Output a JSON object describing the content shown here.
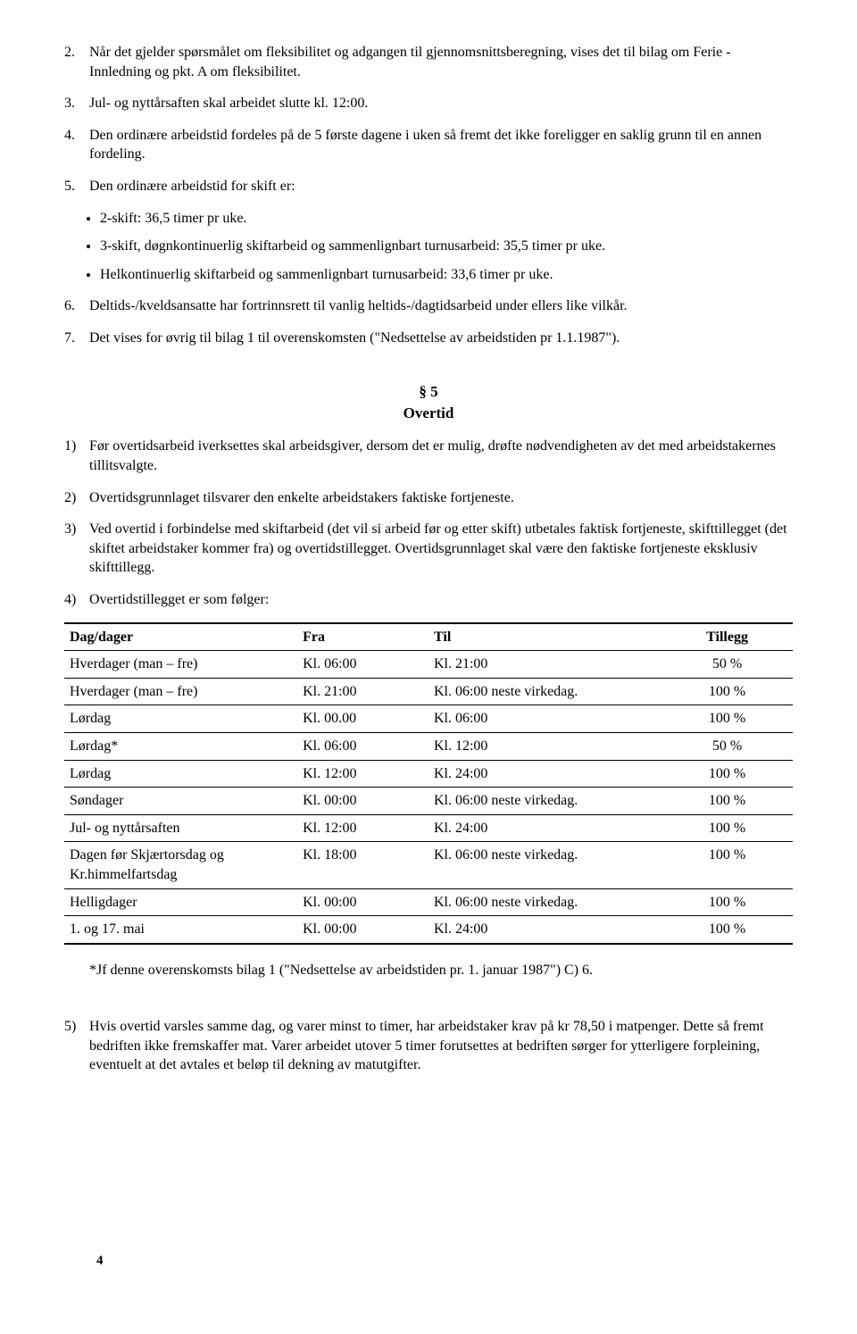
{
  "upper_list": [
    {
      "n": "2.",
      "text": "Når det gjelder spørsmålet om fleksibilitet og adgangen til gjennomsnittsberegning, vises det til bilag om Ferie - Innledning og pkt. A om fleksibilitet."
    },
    {
      "n": "3.",
      "text": "Jul- og nyttårsaften skal arbeidet slutte kl. 12:00."
    },
    {
      "n": "4.",
      "text": "Den ordinære arbeidstid fordeles på de 5 første dagene i uken så fremt det ikke foreligger en saklig grunn til en annen fordeling."
    },
    {
      "n": "5.",
      "text": "Den ordinære arbeidstid for skift er:"
    }
  ],
  "bullets": [
    "2-skift: 36,5 timer pr uke.",
    "3-skift, døgnkontinuerlig skiftarbeid og sammenlignbart turnusarbeid: 35,5 timer pr uke.",
    "Helkontinuerlig skiftarbeid og sammenlignbart turnusarbeid: 33,6 timer pr uke."
  ],
  "upper_list2": [
    {
      "n": "6.",
      "text": "Deltids-/kveldsansatte har fortrinnsrett til vanlig heltids-/dagtidsarbeid under ellers like vilkår."
    },
    {
      "n": "7.",
      "text": "Det vises for øvrig til bilag 1 til overenskomsten (\"Nedsettelse av arbeidstiden pr 1.1.1987\")."
    }
  ],
  "section": {
    "num": "§ 5",
    "title": "Overtid"
  },
  "lower_list": [
    {
      "n": "1)",
      "text": "Før overtidsarbeid iverksettes skal arbeidsgiver, dersom det er mulig, drøfte nødvendigheten av det med arbeidstakernes tillitsvalgte."
    },
    {
      "n": "2)",
      "text": "Overtidsgrunnlaget tilsvarer den enkelte arbeidstakers faktiske fortjeneste."
    },
    {
      "n": "3)",
      "text": "Ved overtid i forbindelse med skiftarbeid (det vil si arbeid før og etter skift) utbetales faktisk fortjeneste, skifttillegget (det skiftet arbeidstaker kommer fra) og overtidstillegget. Overtidsgrunnlaget skal være den faktiske fortjeneste eksklusiv skifttillegg."
    },
    {
      "n": "4)",
      "text": "Overtidstillegget er som følger:"
    }
  ],
  "table": {
    "headers": [
      "Dag/dager",
      "Fra",
      "Til",
      "Tillegg"
    ],
    "rows": [
      [
        "Hverdager (man – fre)",
        "Kl. 06:00",
        "Kl. 21:00",
        "50 %"
      ],
      [
        "Hverdager (man – fre)",
        "Kl. 21:00",
        "Kl. 06:00 neste virkedag.",
        "100 %"
      ],
      [
        "Lørdag",
        "Kl. 00.00",
        "Kl. 06:00",
        "100 %"
      ],
      [
        "Lørdag*",
        "Kl. 06:00",
        "Kl. 12:00",
        "50 %"
      ],
      [
        "Lørdag",
        "Kl. 12:00",
        "Kl. 24:00",
        "100 %"
      ],
      [
        "Søndager",
        "Kl. 00:00",
        "Kl. 06:00 neste virkedag.",
        "100 %"
      ],
      [
        "Jul- og nyttårsaften",
        "Kl. 12:00",
        "Kl. 24:00",
        "100 %"
      ],
      [
        "Dagen før Skjærtorsdag og Kr.himmelfartsdag",
        "Kl. 18:00",
        "Kl. 06:00 neste virkedag.",
        "100 %"
      ],
      [
        "Helligdager",
        "Kl. 00:00",
        "Kl. 06:00 neste virkedag.",
        "100 %"
      ],
      [
        "1. og 17. mai",
        "Kl. 00:00",
        "Kl. 24:00",
        "100 %"
      ]
    ]
  },
  "footnote": "*Jf denne overenskomsts bilag 1 (\"Nedsettelse av arbeidstiden pr. 1. januar 1987\") C) 6.",
  "lower_list2": [
    {
      "n": "5)",
      "text": "Hvis overtid varsles samme dag, og varer minst to timer, har arbeidstaker krav på kr 78,50 i matpenger. Dette så fremt bedriften ikke fremskaffer mat. Varer arbeidet utover 5 timer forutsettes at bedriften sørger for ytterligere forpleining, eventuelt at det avtales et beløp til dekning av matutgifter."
    }
  ],
  "page_number": "4"
}
